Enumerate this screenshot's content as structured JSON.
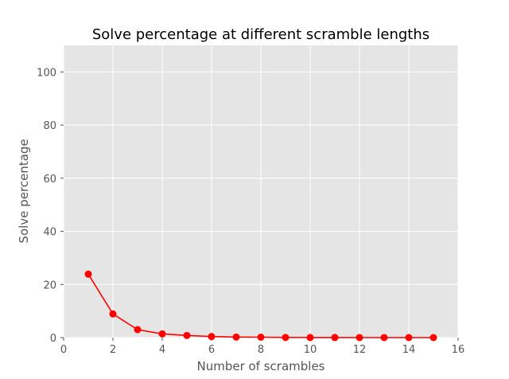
{
  "chart_data": {
    "type": "line",
    "title": "Solve percentage at different scramble lengths",
    "xlabel": "Number of scrambles",
    "ylabel": "Solve percentage",
    "xlim": [
      0,
      16
    ],
    "ylim": [
      0,
      110
    ],
    "xticks": [
      0,
      2,
      4,
      6,
      8,
      10,
      12,
      14,
      16
    ],
    "yticks": [
      0,
      20,
      40,
      60,
      80,
      100
    ],
    "grid": true,
    "style": "ggplot",
    "series": [
      {
        "color": "#ff0000",
        "marker": "circle",
        "x": [
          1,
          2,
          3,
          4,
          5,
          6,
          7,
          8,
          9,
          10,
          11,
          12,
          13,
          14,
          15
        ],
        "values": [
          23.9,
          8.9,
          3.0,
          1.4,
          0.8,
          0.4,
          0.2,
          0.15,
          0.05,
          0.03,
          0.02,
          0.01,
          0.01,
          0.0,
          0.0
        ]
      }
    ]
  }
}
